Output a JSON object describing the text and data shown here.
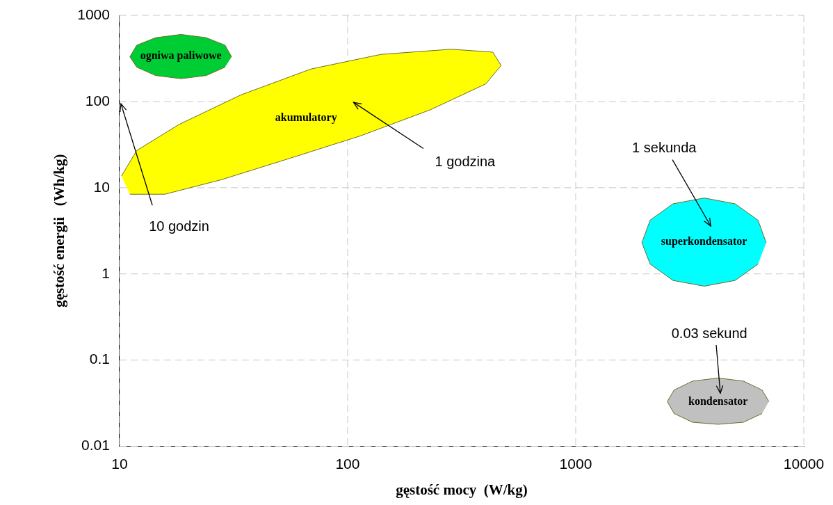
{
  "chart_data": {
    "type": "area",
    "xlabel": "gęstość mocy  (W/kg)",
    "ylabel": "gęstość energii   (Wh/kg)",
    "log": "xy",
    "xlim": [
      10,
      10000
    ],
    "ylim": [
      0.01,
      1000
    ],
    "xticks": [
      10,
      100,
      1000,
      10000
    ],
    "yticks": [
      0.01,
      0.1,
      1,
      10,
      100,
      1000
    ],
    "grid": true,
    "legend": false,
    "marker": "none",
    "series": [
      {
        "name": "ogniwa paliwowe",
        "color": "#00cc33",
        "x": [
          31,
          29,
          24,
          18.6,
          14.4,
          11.9,
          11.1,
          11.9,
          14.4,
          18.6,
          24,
          29
        ],
        "values": [
          330,
          450,
          550,
          600,
          550,
          450,
          330,
          250,
          200,
          184,
          200,
          250
        ]
      },
      {
        "name": "akumulatory",
        "color": "#ffff00",
        "x": [
          10.2,
          11.9,
          18.2,
          34,
          69,
          140,
          284,
          433,
          471,
          403,
          230,
          114,
          56,
          28,
          15.8,
          11.1
        ],
        "values": [
          13.7,
          27,
          54,
          119,
          238,
          352,
          404,
          374,
          262,
          160,
          80,
          40,
          22,
          12.4,
          8.4,
          8.4
        ]
      },
      {
        "name": "superkondensator",
        "color": "#00ffff",
        "x": [
          6840,
          6300,
          5000,
          3660,
          2670,
          2120,
          1950,
          2120,
          2670,
          3660,
          5000,
          6300
        ],
        "values": [
          2.3,
          4.2,
          6.5,
          7.6,
          6.5,
          4.2,
          2.3,
          1.3,
          0.84,
          0.72,
          0.84,
          1.3
        ]
      },
      {
        "name": "kondensator",
        "color": "#c0c0c0",
        "x": [
          7030,
          6560,
          5440,
          4210,
          3250,
          2700,
          2520,
          2700,
          3250,
          4210,
          5440,
          6560
        ],
        "values": [
          0.033,
          0.045,
          0.057,
          0.062,
          0.057,
          0.045,
          0.033,
          0.024,
          0.019,
          0.018,
          0.019,
          0.024
        ]
      }
    ],
    "annotations": [
      "1 godzina",
      "10 godzin",
      "1 sekunda",
      "0.03 sekund"
    ]
  }
}
